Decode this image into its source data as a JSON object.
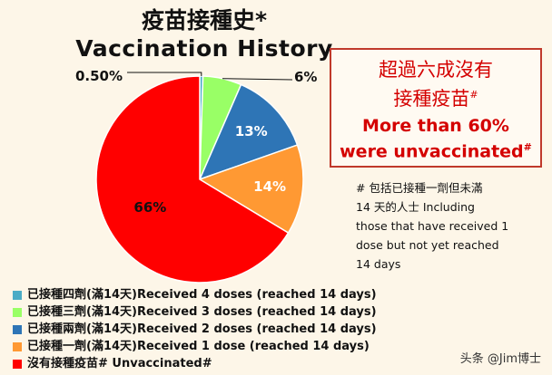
{
  "title": {
    "zh": "疫苗接種史*",
    "en": "Vaccination History"
  },
  "callout": {
    "zh_line1": "超過六成沒有",
    "zh_line2": "接種疫苗",
    "zh_mark": "#",
    "en_line1": "More than 60%",
    "en_line2": "were unvaccinated",
    "en_mark": "#"
  },
  "footnote": {
    "line1": "# 包括已接種一劑但未滿",
    "line2": "14 天的人士  Including",
    "line3": "those that have received 1",
    "line4": "dose but not yet reached",
    "line5": "14 days"
  },
  "watermark": "头条 @Jim博士",
  "colors": {
    "four_doses": "#4bacc6",
    "three_doses": "#99ff66",
    "two_doses": "#2e75b6",
    "one_dose": "#ff9933",
    "unvaccinated": "#ff0000"
  },
  "chart_data": {
    "type": "pie",
    "title": "Vaccination History",
    "legend_position": "bottom-left",
    "slices": [
      {
        "label": "已接種四劑(滿14天)Received 4 doses (reached 14 days)",
        "value": 0.5,
        "display": "0.50%",
        "color": "#4bacc6"
      },
      {
        "label": "已接種三劑(滿14天)Received 3 doses (reached 14 days)",
        "value": 6,
        "display": "6%",
        "color": "#99ff66"
      },
      {
        "label": "已接種兩劑(滿14天)Received 2 doses (reached 14 days)",
        "value": 13,
        "display": "13%",
        "color": "#2e75b6"
      },
      {
        "label": "已接種一劑(滿14天)Received 1 dose (reached 14 days)",
        "value": 14,
        "display": "14%",
        "color": "#ff9933"
      },
      {
        "label": "沒有接種疫苗# Unvaccinated#",
        "value": 66,
        "display": "66%",
        "color": "#ff0000"
      }
    ]
  }
}
